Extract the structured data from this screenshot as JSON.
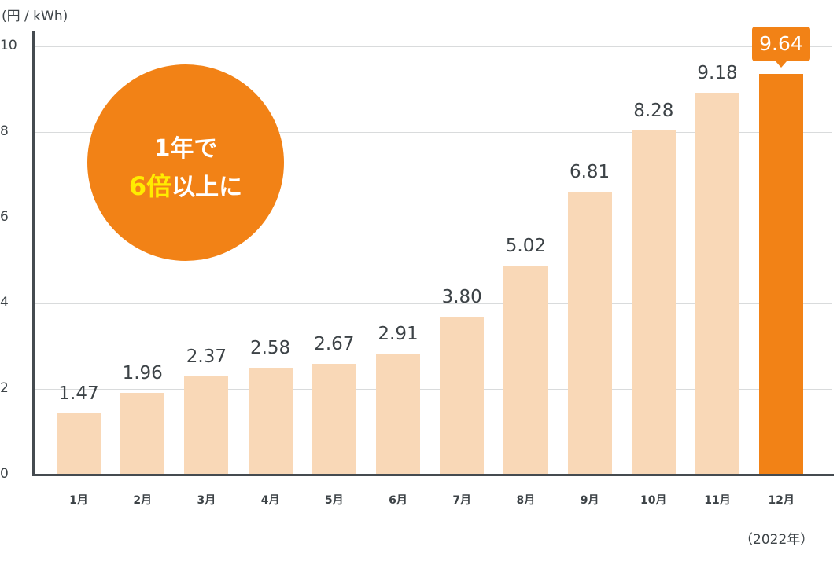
{
  "chart_data": {
    "type": "bar",
    "title": "",
    "xlabel": "",
    "ylabel": "(円 / kWh)",
    "ylim": [
      0,
      10
    ],
    "yticks": [
      0,
      2,
      4,
      6,
      8,
      10
    ],
    "grid": true,
    "categories": [
      "1月",
      "2月",
      "3月",
      "4月",
      "5月",
      "6月",
      "7月",
      "8月",
      "9月",
      "10月",
      "11月",
      "12月"
    ],
    "values": [
      1.47,
      1.96,
      2.37,
      2.58,
      2.67,
      2.91,
      3.8,
      5.02,
      6.81,
      8.28,
      9.18,
      9.64
    ],
    "value_labels": [
      "1.47",
      "1.96",
      "2.37",
      "2.58",
      "2.67",
      "2.91",
      "3.80",
      "5.02",
      "6.81",
      "8.28",
      "9.18",
      "9.64"
    ],
    "highlight_index": 11,
    "colors": {
      "bar": "#f9d8b7",
      "highlight": "#f28216",
      "badge": "#f28216",
      "badge_accent": "#ffec00"
    },
    "annotations": {
      "badge_line1": "1年で",
      "badge_line2_accent": "6倍",
      "badge_line2_rest": "以上に",
      "year_note": "（2022年）"
    }
  },
  "axis": {
    "unit_label": "(円 / kWh)",
    "ytick_labels": [
      "10",
      "8",
      "6",
      "4",
      "2",
      "0"
    ]
  }
}
